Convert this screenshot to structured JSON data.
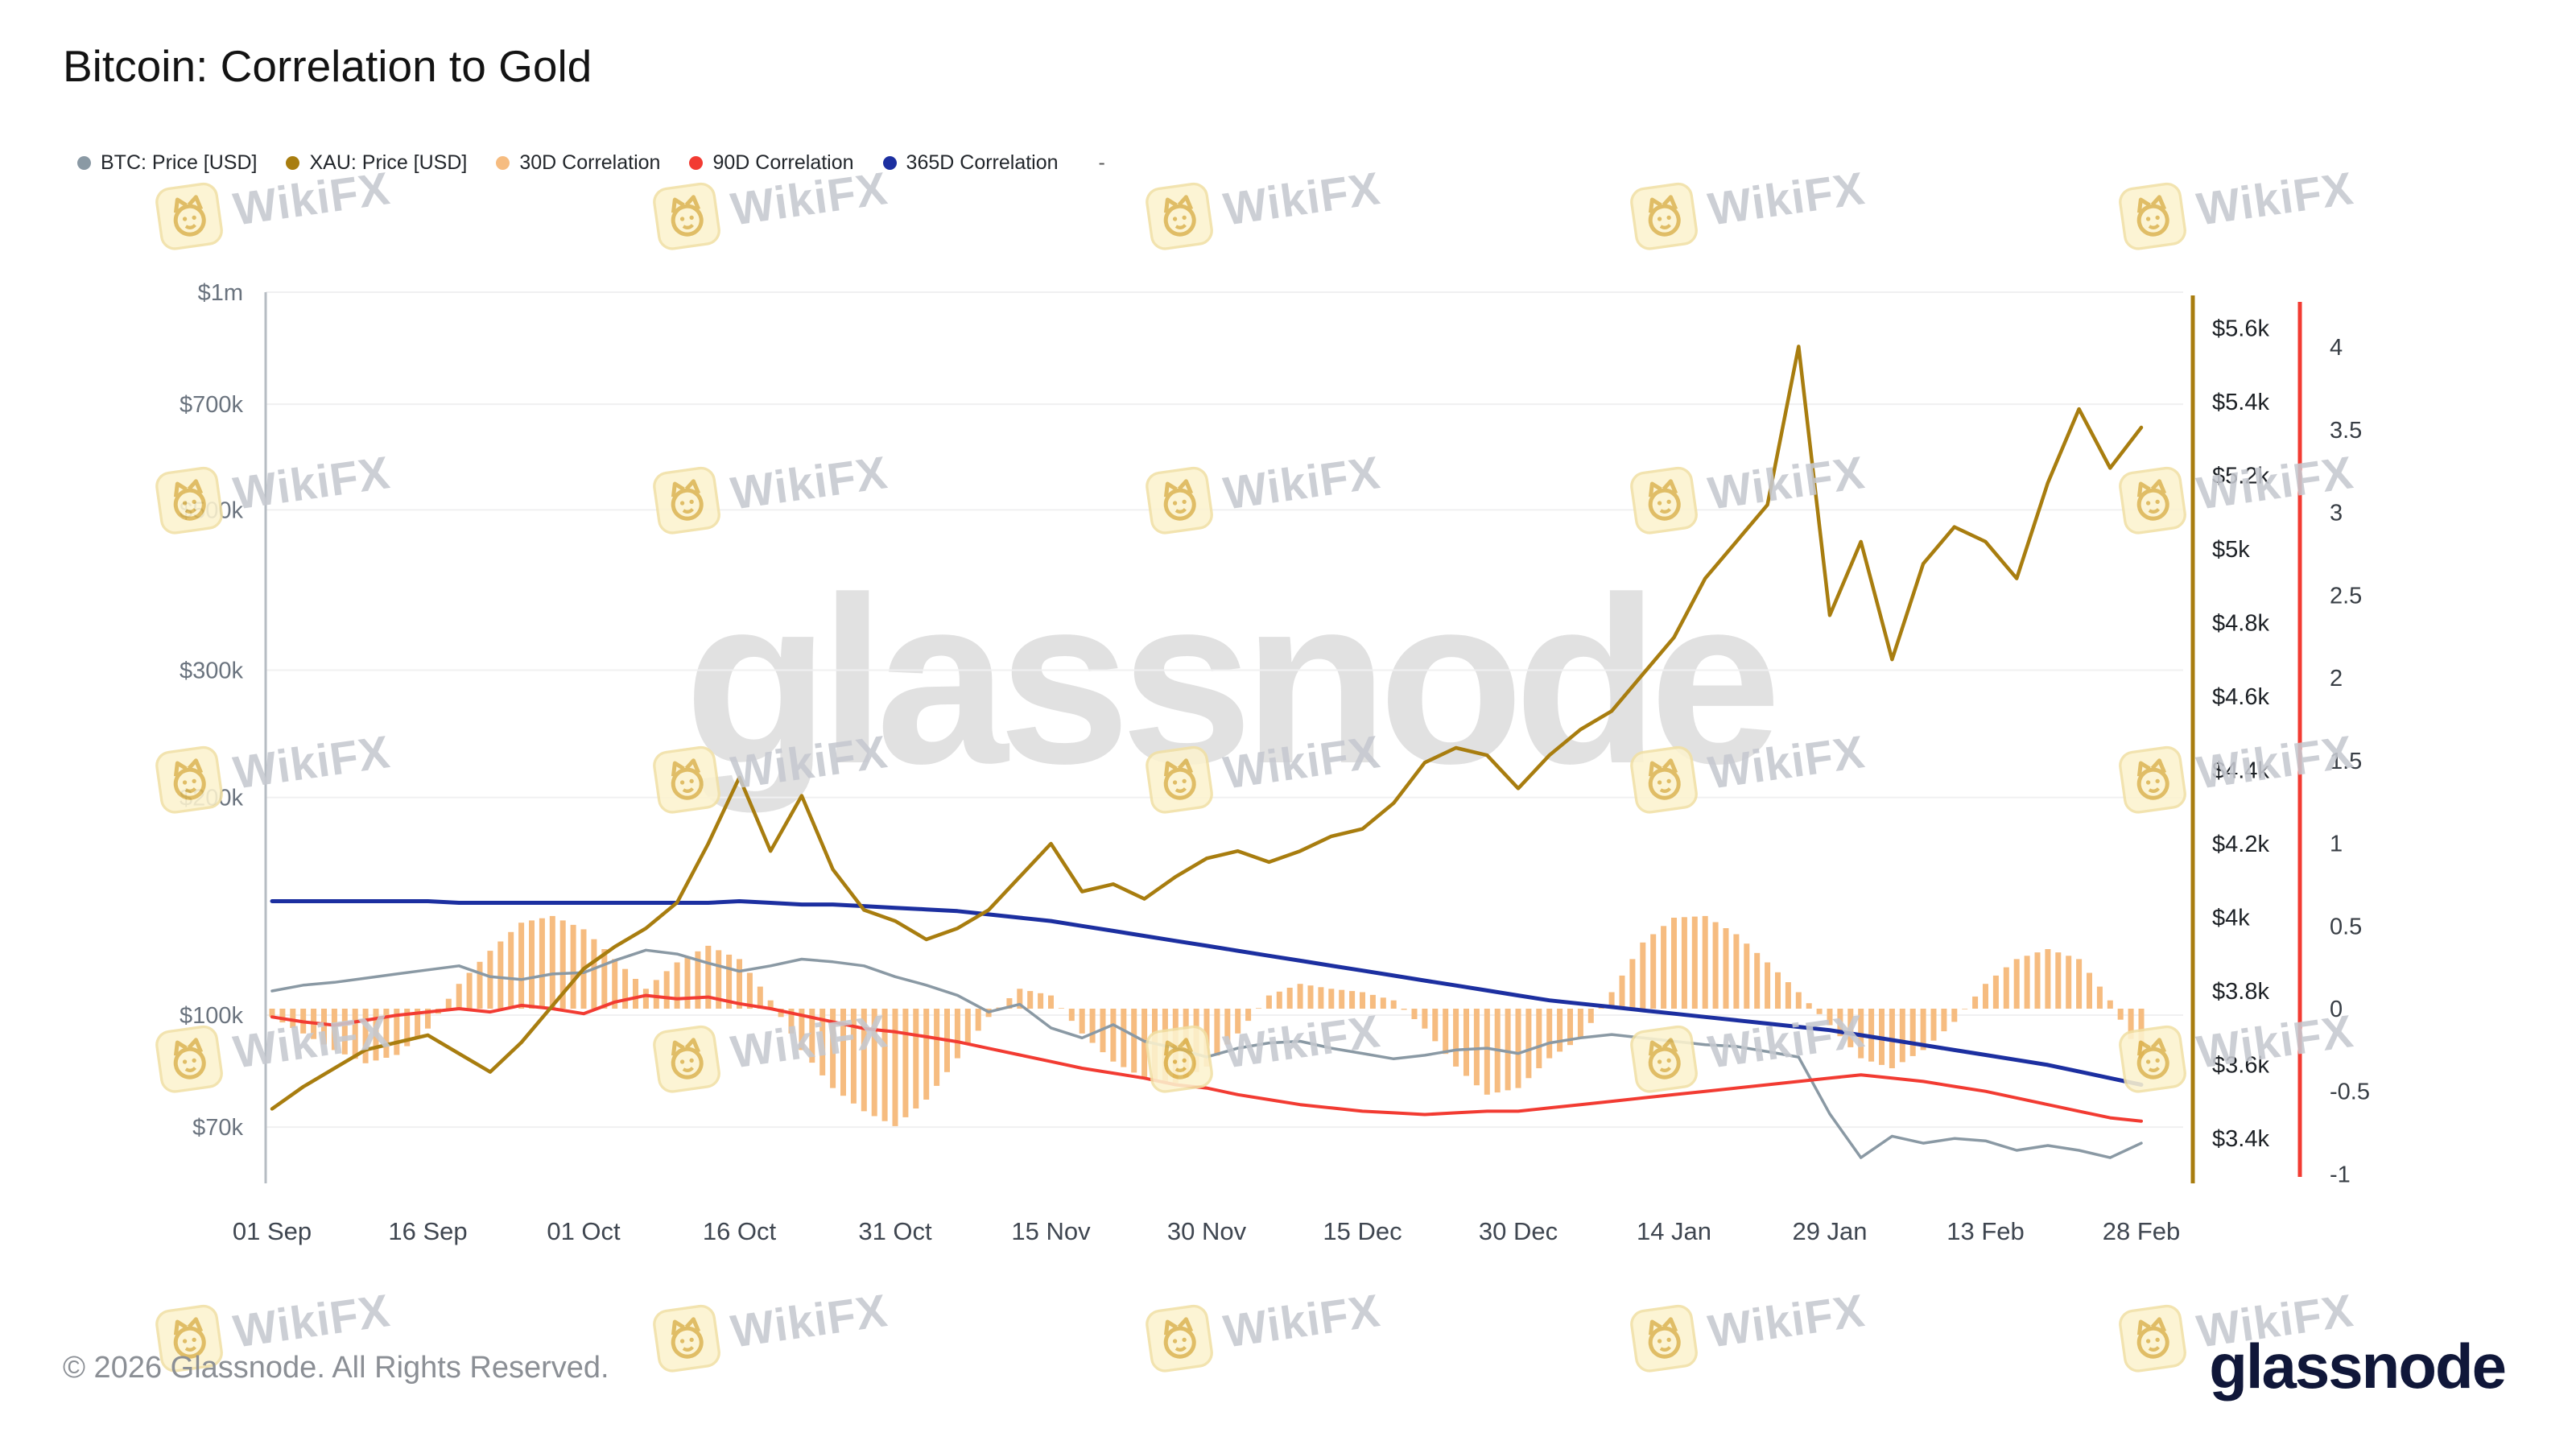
{
  "title": "Bitcoin: Correlation to Gold",
  "legend": {
    "items": [
      {
        "label": "BTC: Price [USD]",
        "color": "#8a99a4"
      },
      {
        "label": "XAU: Price [USD]",
        "color": "#a87d0f"
      },
      {
        "label": "30D Correlation",
        "color": "#f6bc80"
      },
      {
        "label": "90D Correlation",
        "color": "#f23b32"
      },
      {
        "label": "365D Correlation",
        "color": "#1c2fa0"
      }
    ],
    "extra": "-"
  },
  "watermark": {
    "text": "WikiFX",
    "center_text": "glassnode"
  },
  "footer": {
    "copyright": "© 2026 Glassnode. All Rights Reserved.",
    "logo_text": "glassnode"
  },
  "chart_data": {
    "type": "line",
    "title": "Bitcoin: Correlation to Gold",
    "x_tick_labels": [
      "01 Sep",
      "16 Sep",
      "01 Oct",
      "16 Oct",
      "31 Oct",
      "15 Nov",
      "30 Nov",
      "15 Dec",
      "30 Dec",
      "14 Jan",
      "29 Jan",
      "13 Feb",
      "28 Feb"
    ],
    "x_tick_days": [
      0,
      15,
      30,
      45,
      60,
      75,
      90,
      105,
      120,
      135,
      150,
      165,
      180
    ],
    "sample_step_days": 3,
    "grid": "horizontal-faint",
    "legend_position": "top-left",
    "axes": {
      "left_price_usd": {
        "scale": "log",
        "domain": [
          58500,
          1000000
        ],
        "ticks": [
          {
            "label": "$1m",
            "value": 1000000
          },
          {
            "label": "$700k",
            "value": 700000
          },
          {
            "label": "$500k",
            "value": 500000
          },
          {
            "label": "$300k",
            "value": 300000
          },
          {
            "label": "$200k",
            "value": 200000
          },
          {
            "label": "$100k",
            "value": 100000
          },
          {
            "label": "$70k",
            "value": 70000
          }
        ]
      },
      "right_gold_usd": {
        "scale": "linear",
        "domain_usd_k": [
          3.28,
          5.72
        ],
        "ticks": [
          {
            "label": "$5.6k",
            "value": 5.6
          },
          {
            "label": "$5.4k",
            "value": 5.4
          },
          {
            "label": "$5.2k",
            "value": 5.2
          },
          {
            "label": "$5k",
            "value": 5.0
          },
          {
            "label": "$4.8k",
            "value": 4.8
          },
          {
            "label": "$4.6k",
            "value": 4.6
          },
          {
            "label": "$4.4k",
            "value": 4.4
          },
          {
            "label": "$4.2k",
            "value": 4.2
          },
          {
            "label": "$4k",
            "value": 4.0
          },
          {
            "label": "$3.8k",
            "value": 3.8
          },
          {
            "label": "$3.6k",
            "value": 3.6
          },
          {
            "label": "$3.4k",
            "value": 3.4
          }
        ]
      },
      "right_correlation": {
        "scale": "linear",
        "domain": [
          -1.06,
          4.33
        ],
        "ticks": [
          {
            "label": "4",
            "value": 4
          },
          {
            "label": "3.5",
            "value": 3.5
          },
          {
            "label": "3",
            "value": 3
          },
          {
            "label": "2.5",
            "value": 2.5
          },
          {
            "label": "2",
            "value": 2
          },
          {
            "label": "1.5",
            "value": 1.5
          },
          {
            "label": "1",
            "value": 1
          },
          {
            "label": "0.5",
            "value": 0.5
          },
          {
            "label": "0",
            "value": 0
          },
          {
            "label": "-0.5",
            "value": -0.5
          },
          {
            "label": "-1",
            "value": -1
          }
        ]
      }
    },
    "series": [
      {
        "name": "BTC: Price [USD]",
        "style": "line",
        "axis": "left_price_usd",
        "color": "#8a99a4",
        "unit": "USD thousands",
        "values": [
          108,
          110,
          111,
          112.5,
          114,
          115.5,
          117,
          113,
          112,
          114,
          114.5,
          119,
          123,
          121.5,
          118,
          115,
          117,
          119.5,
          118.5,
          117,
          113,
          110,
          106.5,
          101,
          103.5,
          96,
          93,
          97,
          92,
          90,
          87.5,
          90,
          91.5,
          92,
          90,
          88.5,
          87,
          88,
          89.5,
          90,
          88.5,
          91.5,
          93,
          94,
          93,
          92,
          91,
          90.5,
          89,
          87.5,
          73,
          63.5,
          68,
          66.5,
          67.5,
          67,
          65,
          66,
          65,
          63.5,
          66.5
        ]
      },
      {
        "name": "XAU: Price [USD]",
        "style": "line",
        "axis": "right_gold_usd",
        "color": "#a87d0f",
        "unit": "USD thousands",
        "values": [
          3.48,
          3.54,
          3.59,
          3.64,
          3.66,
          3.68,
          3.63,
          3.58,
          3.66,
          3.76,
          3.86,
          3.92,
          3.97,
          4.04,
          4.2,
          4.38,
          4.18,
          4.33,
          4.13,
          4.02,
          3.99,
          3.94,
          3.97,
          4.02,
          4.11,
          4.2,
          4.07,
          4.09,
          4.05,
          4.11,
          4.16,
          4.18,
          4.15,
          4.18,
          4.22,
          4.24,
          4.31,
          4.42,
          4.46,
          4.44,
          4.35,
          4.44,
          4.51,
          4.56,
          4.66,
          4.76,
          4.92,
          5.02,
          5.12,
          5.55,
          4.82,
          5.02,
          4.7,
          4.96,
          5.06,
          5.02,
          4.92,
          5.18,
          5.38,
          5.22,
          5.33
        ]
      },
      {
        "name": "30D Correlation",
        "style": "bar",
        "axis": "right_correlation",
        "color": "#f6bc80",
        "values": [
          -0.05,
          -0.15,
          -0.25,
          -0.33,
          -0.28,
          -0.12,
          0.15,
          0.35,
          0.52,
          0.56,
          0.48,
          0.3,
          0.12,
          0.28,
          0.38,
          0.3,
          0.05,
          -0.25,
          -0.48,
          -0.62,
          -0.71,
          -0.55,
          -0.3,
          -0.05,
          0.12,
          0.08,
          -0.15,
          -0.32,
          -0.42,
          -0.45,
          -0.35,
          -0.15,
          0.08,
          0.15,
          0.12,
          0.1,
          0.05,
          -0.12,
          -0.35,
          -0.52,
          -0.48,
          -0.3,
          -0.18,
          0.1,
          0.4,
          0.55,
          0.56,
          0.45,
          0.28,
          0.1,
          -0.1,
          -0.3,
          -0.36,
          -0.25,
          -0.08,
          0.15,
          0.3,
          0.36,
          0.3,
          0.05,
          -0.3
        ]
      },
      {
        "name": "90D Correlation",
        "style": "line",
        "axis": "right_correlation",
        "color": "#f23b32",
        "values": [
          -0.05,
          -0.08,
          -0.1,
          -0.07,
          -0.04,
          -0.02,
          0.0,
          -0.02,
          0.02,
          0.0,
          -0.03,
          0.04,
          0.08,
          0.06,
          0.07,
          0.03,
          0.0,
          -0.04,
          -0.08,
          -0.12,
          -0.14,
          -0.17,
          -0.2,
          -0.24,
          -0.28,
          -0.32,
          -0.36,
          -0.39,
          -0.42,
          -0.46,
          -0.48,
          -0.52,
          -0.55,
          -0.58,
          -0.6,
          -0.62,
          -0.63,
          -0.64,
          -0.63,
          -0.62,
          -0.62,
          -0.6,
          -0.58,
          -0.56,
          -0.54,
          -0.52,
          -0.5,
          -0.48,
          -0.46,
          -0.44,
          -0.42,
          -0.4,
          -0.42,
          -0.44,
          -0.47,
          -0.5,
          -0.54,
          -0.58,
          -0.62,
          -0.66,
          -0.68
        ]
      },
      {
        "name": "365D Correlation",
        "style": "line",
        "axis": "right_correlation",
        "color": "#1c2fa0",
        "values": [
          0.65,
          0.65,
          0.65,
          0.65,
          0.65,
          0.65,
          0.64,
          0.64,
          0.64,
          0.64,
          0.64,
          0.64,
          0.64,
          0.64,
          0.64,
          0.65,
          0.64,
          0.63,
          0.63,
          0.62,
          0.61,
          0.6,
          0.59,
          0.57,
          0.55,
          0.53,
          0.5,
          0.47,
          0.44,
          0.41,
          0.38,
          0.35,
          0.32,
          0.29,
          0.26,
          0.23,
          0.2,
          0.17,
          0.14,
          0.11,
          0.08,
          0.05,
          0.03,
          0.01,
          -0.01,
          -0.03,
          -0.05,
          -0.07,
          -0.09,
          -0.11,
          -0.13,
          -0.16,
          -0.19,
          -0.22,
          -0.25,
          -0.28,
          -0.31,
          -0.34,
          -0.38,
          -0.42,
          -0.46
        ]
      }
    ]
  }
}
